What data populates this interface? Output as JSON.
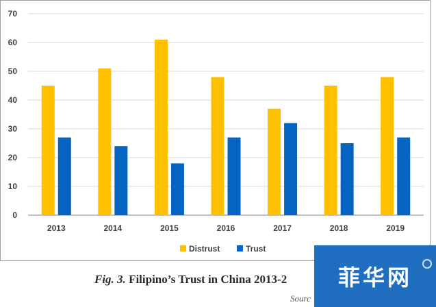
{
  "chart_data": {
    "type": "bar",
    "categories": [
      "2013",
      "2014",
      "2015",
      "2016",
      "2017",
      "2018",
      "2019"
    ],
    "series": [
      {
        "name": "Distrust",
        "color": "#ffc000",
        "values": [
          45,
          51,
          61,
          48,
          37,
          45,
          48
        ]
      },
      {
        "name": "Trust",
        "color": "#0563c1",
        "values": [
          27,
          24,
          18,
          27,
          32,
          25,
          27
        ]
      }
    ],
    "y_ticks": [
      "0",
      "10",
      "20",
      "30",
      "40",
      "50",
      "60",
      "70"
    ],
    "ylim": [
      0,
      70
    ],
    "grid": true,
    "legend_position": "bottom"
  },
  "caption": {
    "figure_label": "Fig. 3.",
    "title": "Filipino’s Trust in China 2013-2"
  },
  "source_text": "Sourc",
  "watermark": {
    "text": "菲华网"
  }
}
